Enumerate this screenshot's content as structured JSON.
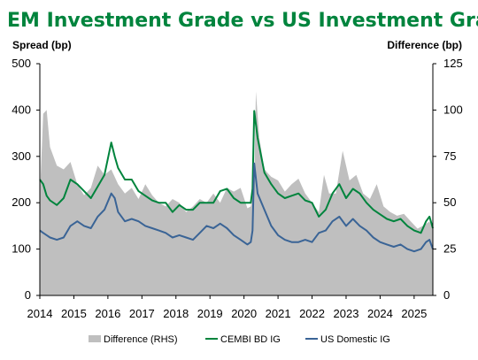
{
  "chart_data": {
    "type": "line",
    "title": "EM Investment Grade vs US Investment Grade",
    "ylabel_left": "Spread (bp)",
    "ylabel_right": "Difference (bp)",
    "xlim": [
      2014.0,
      2025.55
    ],
    "ylim_left": [
      0,
      500
    ],
    "ylim_right": [
      0,
      125
    ],
    "x_ticks": [
      "2014",
      "2015",
      "2016",
      "2017",
      "2018",
      "2019",
      "2020",
      "2021",
      "2022",
      "2023",
      "2024",
      "2025"
    ],
    "y_ticks_left": [
      "0",
      "100",
      "200",
      "300",
      "400",
      "500"
    ],
    "y_ticks_right": [
      "0",
      "25",
      "50",
      "75",
      "100",
      "125"
    ],
    "legend_position": "bottom",
    "colors": {
      "title": "#00843D",
      "area": "#BFBFBF",
      "cembi": "#00843D",
      "us": "#3A6496"
    },
    "series": [
      {
        "name": "Difference (RHS)",
        "type": "area",
        "axis": "right",
        "x": [
          2014.0,
          2014.1,
          2014.2,
          2014.3,
          2014.5,
          2014.7,
          2014.9,
          2015.1,
          2015.3,
          2015.5,
          2015.7,
          2015.9,
          2016.1,
          2016.3,
          2016.5,
          2016.7,
          2016.9,
          2017.1,
          2017.3,
          2017.5,
          2017.7,
          2017.9,
          2018.1,
          2018.3,
          2018.5,
          2018.7,
          2018.9,
          2019.1,
          2019.3,
          2019.5,
          2019.7,
          2019.9,
          2020.1,
          2020.2,
          2020.3,
          2020.35,
          2020.45,
          2020.6,
          2020.8,
          2021.0,
          2021.2,
          2021.4,
          2021.6,
          2021.8,
          2022.0,
          2022.2,
          2022.35,
          2022.5,
          2022.7,
          2022.9,
          2023.1,
          2023.3,
          2023.5,
          2023.7,
          2023.9,
          2024.1,
          2024.3,
          2024.5,
          2024.7,
          2024.9,
          2025.1,
          2025.3,
          2025.45,
          2025.55
        ],
        "values": [
          53,
          98,
          100,
          80,
          70,
          68,
          72,
          60,
          54,
          58,
          70,
          65,
          68,
          60,
          55,
          58,
          52,
          60,
          54,
          50,
          48,
          52,
          50,
          45,
          48,
          52,
          50,
          55,
          50,
          58,
          56,
          58,
          47,
          48,
          60,
          110,
          85,
          68,
          64,
          62,
          56,
          60,
          63,
          55,
          50,
          45,
          65,
          55,
          55,
          78,
          62,
          65,
          55,
          52,
          60,
          48,
          45,
          43,
          44,
          40,
          36,
          38,
          40,
          36
        ]
      },
      {
        "name": "CEMBI BD IG",
        "type": "line",
        "axis": "left",
        "x": [
          2014.0,
          2014.1,
          2014.2,
          2014.3,
          2014.5,
          2014.7,
          2014.9,
          2015.1,
          2015.3,
          2015.5,
          2015.7,
          2015.9,
          2016.1,
          2016.2,
          2016.3,
          2016.5,
          2016.7,
          2016.9,
          2017.1,
          2017.3,
          2017.5,
          2017.7,
          2017.9,
          2018.1,
          2018.3,
          2018.5,
          2018.7,
          2018.9,
          2019.1,
          2019.3,
          2019.5,
          2019.7,
          2019.9,
          2020.1,
          2020.2,
          2020.25,
          2020.3,
          2020.4,
          2020.6,
          2020.8,
          2021.0,
          2021.2,
          2021.4,
          2021.6,
          2021.8,
          2022.0,
          2022.2,
          2022.4,
          2022.6,
          2022.8,
          2023.0,
          2023.2,
          2023.4,
          2023.6,
          2023.8,
          2024.0,
          2024.2,
          2024.4,
          2024.6,
          2024.8,
          2025.0,
          2025.2,
          2025.35,
          2025.45,
          2025.55
        ],
        "values": [
          250,
          240,
          215,
          205,
          195,
          210,
          250,
          240,
          225,
          210,
          235,
          260,
          330,
          300,
          275,
          250,
          250,
          225,
          215,
          205,
          200,
          200,
          180,
          195,
          185,
          185,
          200,
          200,
          200,
          225,
          230,
          210,
          200,
          200,
          200,
          230,
          398,
          340,
          265,
          240,
          220,
          210,
          215,
          220,
          205,
          200,
          170,
          185,
          220,
          240,
          210,
          230,
          220,
          200,
          185,
          175,
          165,
          160,
          165,
          150,
          140,
          135,
          160,
          170,
          145
        ]
      },
      {
        "name": "US Domestic IG",
        "type": "line",
        "axis": "left",
        "x": [
          2014.0,
          2014.1,
          2014.2,
          2014.3,
          2014.5,
          2014.7,
          2014.9,
          2015.1,
          2015.3,
          2015.5,
          2015.7,
          2015.9,
          2016.1,
          2016.2,
          2016.3,
          2016.5,
          2016.7,
          2016.9,
          2017.1,
          2017.3,
          2017.5,
          2017.7,
          2017.9,
          2018.1,
          2018.3,
          2018.5,
          2018.7,
          2018.9,
          2019.1,
          2019.3,
          2019.5,
          2019.7,
          2019.9,
          2020.1,
          2020.2,
          2020.25,
          2020.3,
          2020.4,
          2020.6,
          2020.8,
          2021.0,
          2021.2,
          2021.4,
          2021.6,
          2021.8,
          2022.0,
          2022.2,
          2022.4,
          2022.6,
          2022.8,
          2023.0,
          2023.2,
          2023.4,
          2023.6,
          2023.8,
          2024.0,
          2024.2,
          2024.4,
          2024.6,
          2024.8,
          2025.0,
          2025.2,
          2025.35,
          2025.45,
          2025.55
        ],
        "values": [
          140,
          135,
          130,
          125,
          120,
          125,
          150,
          160,
          150,
          145,
          170,
          185,
          220,
          210,
          180,
          160,
          165,
          160,
          150,
          145,
          140,
          135,
          125,
          130,
          125,
          120,
          135,
          150,
          145,
          155,
          145,
          130,
          120,
          110,
          115,
          140,
          285,
          220,
          185,
          150,
          130,
          120,
          115,
          115,
          120,
          115,
          135,
          140,
          160,
          170,
          150,
          165,
          150,
          140,
          125,
          115,
          110,
          105,
          110,
          100,
          95,
          100,
          115,
          120,
          100
        ]
      }
    ]
  }
}
